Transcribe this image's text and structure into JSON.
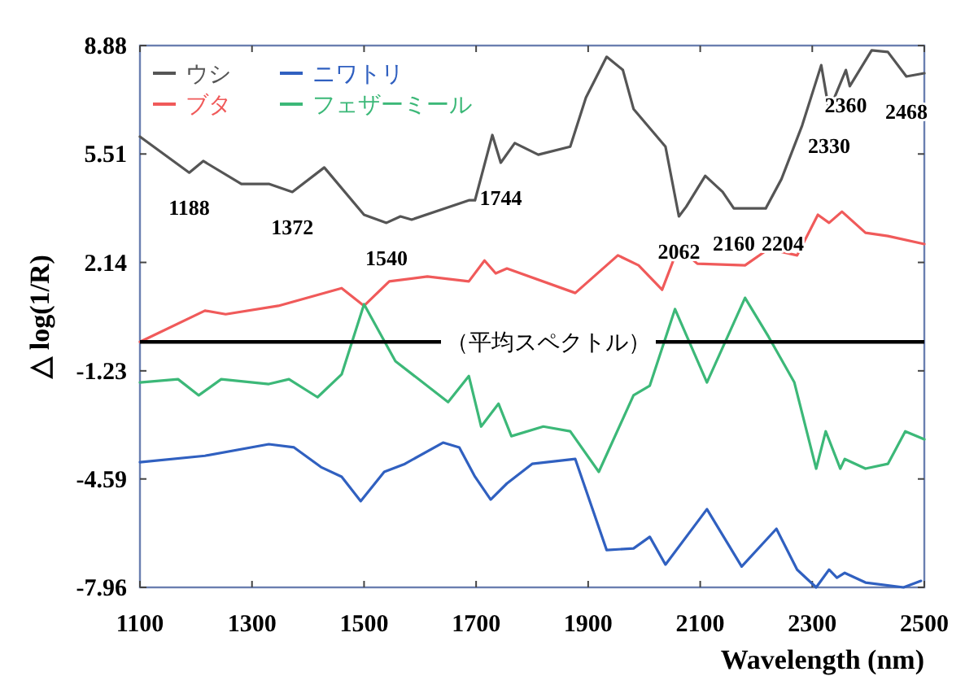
{
  "chart_data": {
    "type": "line",
    "xlabel": "Wavelength (nm)",
    "ylabel": "△ log(1/R)",
    "xlim": [
      1100,
      2500
    ],
    "ylim": [
      -7.96,
      8.88
    ],
    "xticks": [
      1100,
      1300,
      1500,
      1700,
      1900,
      2100,
      2300,
      2500
    ],
    "yticks": [
      8.88,
      5.51,
      2.14,
      -1.23,
      -4.59,
      -7.96
    ],
    "legend": "top left",
    "series": [
      {
        "name": "ウシ",
        "color": "#555555",
        "x": [
          1100,
          1188,
          1213,
          1281,
          1330,
          1372,
          1429,
          1500,
          1540,
          1565,
          1585,
          1687,
          1698,
          1729,
          1744,
          1769,
          1811,
          1868,
          1896,
          1933,
          1962,
          1981,
          2038,
          2062,
          2075,
          2109,
          2140,
          2160,
          2204,
          2217,
          2245,
          2282,
          2316,
          2330,
          2360,
          2367,
          2406,
          2435,
          2468,
          2500
        ],
        "values": [
          6.05,
          4.93,
          5.29,
          4.58,
          4.58,
          4.33,
          5.09,
          3.62,
          3.37,
          3.57,
          3.47,
          4.07,
          4.07,
          6.1,
          5.24,
          5.85,
          5.49,
          5.74,
          7.26,
          8.53,
          8.12,
          6.91,
          5.74,
          3.57,
          3.87,
          4.83,
          4.33,
          3.82,
          3.82,
          3.82,
          4.73,
          6.4,
          8.27,
          6.86,
          8.12,
          7.62,
          8.73,
          8.68,
          7.92,
          8.02
        ]
      },
      {
        "name": "ニワトリ",
        "color": "#3060c0",
        "x": [
          1100,
          1216,
          1330,
          1375,
          1423,
          1460,
          1494,
          1536,
          1573,
          1641,
          1670,
          1698,
          1726,
          1755,
          1800,
          1877,
          1933,
          1981,
          2010,
          2038,
          2112,
          2174,
          2236,
          2273,
          2307,
          2330,
          2344,
          2358,
          2395,
          2463,
          2494
        ],
        "values": [
          -4.07,
          -3.87,
          -3.51,
          -3.61,
          -4.22,
          -4.52,
          -5.28,
          -4.37,
          -4.12,
          -3.46,
          -3.61,
          -4.52,
          -5.23,
          -4.73,
          -4.12,
          -3.97,
          -6.8,
          -6.75,
          -6.39,
          -7.25,
          -5.53,
          -7.31,
          -6.14,
          -7.41,
          -7.96,
          -7.41,
          -7.66,
          -7.51,
          -7.81,
          -7.96,
          -7.76
        ]
      },
      {
        "name": "ブタ",
        "color": "#f05a5a",
        "x": [
          1100,
          1216,
          1253,
          1347,
          1460,
          1500,
          1545,
          1613,
          1687,
          1715,
          1735,
          1755,
          1877,
          1953,
          1990,
          2032,
          2061,
          2095,
          2180,
          2222,
          2273,
          2310,
          2330,
          2353,
          2395,
          2435,
          2500
        ],
        "values": [
          -0.33,
          0.64,
          0.53,
          0.79,
          1.34,
          0.79,
          1.55,
          1.7,
          1.55,
          2.2,
          1.8,
          1.95,
          1.19,
          2.36,
          2.05,
          1.29,
          2.61,
          2.1,
          2.05,
          2.56,
          2.36,
          3.62,
          3.37,
          3.72,
          3.06,
          2.96,
          2.71
        ]
      },
      {
        "name": "フェザーミール",
        "color": "#3cb878",
        "x": [
          1100,
          1168,
          1205,
          1245,
          1330,
          1366,
          1417,
          1460,
          1500,
          1556,
          1650,
          1687,
          1709,
          1740,
          1763,
          1820,
          1868,
          1919,
          1981,
          2010,
          2055,
          2112,
          2180,
          2222,
          2268,
          2307,
          2324,
          2350,
          2358,
          2395,
          2435,
          2466,
          2500
        ],
        "values": [
          -1.59,
          -1.49,
          -1.99,
          -1.49,
          -1.64,
          -1.49,
          -2.05,
          -1.34,
          0.84,
          -0.93,
          -2.2,
          -1.39,
          -2.96,
          -2.25,
          -3.26,
          -2.96,
          -3.11,
          -4.37,
          -1.99,
          -1.69,
          0.69,
          -1.59,
          1.04,
          -0.17,
          -1.59,
          -4.27,
          -3.11,
          -4.27,
          -3.97,
          -4.27,
          -4.12,
          -3.11,
          -3.36
        ]
      }
    ],
    "ref_lines": [
      {
        "axis": "y",
        "value": -0.33,
        "label": "（平均スペクトル）",
        "color": "#000000"
      }
    ],
    "annotations": [
      {
        "text": "1188",
        "x": 1188,
        "y": 4.93
      },
      {
        "text": "1372",
        "x": 1372,
        "y": 4.33
      },
      {
        "text": "1540",
        "x": 1540,
        "y": 3.37
      },
      {
        "text": "1744",
        "x": 1744,
        "y": 5.24
      },
      {
        "text": "2062",
        "x": 2062,
        "y": 3.57
      },
      {
        "text": "2160",
        "x": 2160,
        "y": 3.82
      },
      {
        "text": "2204",
        "x": 2204,
        "y": 3.82
      },
      {
        "text": "2330",
        "x": 2330,
        "y": 6.86
      },
      {
        "text": "2360",
        "x": 2360,
        "y": 8.12
      },
      {
        "text": "2468",
        "x": 2468,
        "y": 7.92
      }
    ]
  }
}
